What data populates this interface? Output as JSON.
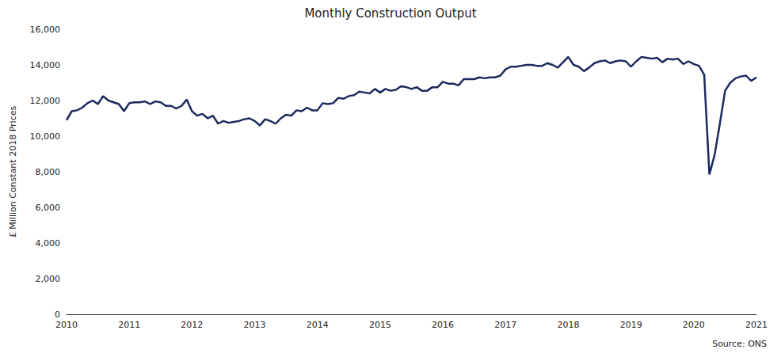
{
  "chart_data": {
    "type": "line",
    "title": "Monthly Construction Output",
    "y_label": "£ Million Constant 2018 Prices",
    "annotations": [
      "Source: ONS"
    ],
    "color": "#1b2a5e",
    "grid": false,
    "ylim": [
      0,
      16000
    ],
    "yticks": [
      0,
      {
        "value": 2000,
        "label": "2,000"
      },
      {
        "value": 4000,
        "label": "4,000"
      },
      {
        "value": 6000,
        "label": "6,000"
      },
      {
        "value": 8000,
        "label": "8,000"
      },
      {
        "value": 10000,
        "label": "10,000"
      },
      {
        "value": 12000,
        "label": "12,000"
      },
      {
        "value": 14000,
        "label": "14,000"
      },
      {
        "value": 16000,
        "label": "16,000"
      }
    ],
    "categories": [
      "2010",
      null,
      null,
      null,
      null,
      null,
      null,
      null,
      null,
      null,
      null,
      null,
      "2011",
      null,
      null,
      null,
      null,
      null,
      null,
      null,
      null,
      null,
      null,
      null,
      "2012",
      null,
      null,
      null,
      null,
      null,
      null,
      null,
      null,
      null,
      null,
      null,
      "2013",
      null,
      null,
      null,
      null,
      null,
      null,
      null,
      null,
      null,
      null,
      null,
      "2014",
      null,
      null,
      null,
      null,
      null,
      null,
      null,
      null,
      null,
      null,
      null,
      "2015",
      null,
      null,
      null,
      null,
      null,
      null,
      null,
      null,
      null,
      null,
      null,
      "2016",
      null,
      null,
      null,
      null,
      null,
      null,
      null,
      null,
      null,
      null,
      null,
      "2017",
      null,
      null,
      null,
      null,
      null,
      null,
      null,
      null,
      null,
      null,
      null,
      "2018",
      null,
      null,
      null,
      null,
      null,
      null,
      null,
      null,
      null,
      null,
      null,
      "2019",
      null,
      null,
      null,
      null,
      null,
      null,
      null,
      null,
      null,
      null,
      null,
      "2020",
      null,
      null,
      null,
      null,
      null,
      null,
      null,
      null,
      null,
      null,
      null,
      "2021"
    ],
    "values": [
      10900,
      11400,
      11450,
      11600,
      11850,
      12000,
      11800,
      12250,
      12000,
      11900,
      11800,
      11400,
      11850,
      11900,
      11900,
      11950,
      11800,
      11950,
      11900,
      11700,
      11700,
      11550,
      11700,
      12050,
      11400,
      11150,
      11250,
      11000,
      11150,
      10700,
      10850,
      10750,
      10800,
      10850,
      10950,
      11000,
      10850,
      10600,
      10950,
      10850,
      10700,
      11000,
      11200,
      11150,
      11450,
      11400,
      11600,
      11450,
      11450,
      11850,
      11800,
      11850,
      12150,
      12100,
      12250,
      12300,
      12500,
      12450,
      12400,
      12650,
      12450,
      12650,
      12550,
      12600,
      12800,
      12750,
      12650,
      12750,
      12550,
      12550,
      12750,
      12750,
      13050,
      12950,
      12950,
      12850,
      13200,
      13200,
      13200,
      13300,
      13250,
      13300,
      13300,
      13400,
      13750,
      13900,
      13900,
      13950,
      14000,
      14000,
      13950,
      13950,
      14100,
      14000,
      13850,
      14150,
      14450,
      14000,
      13900,
      13650,
      13850,
      14100,
      14200,
      14250,
      14100,
      14200,
      14250,
      14200,
      13900,
      14200,
      14450,
      14400,
      14350,
      14400,
      14150,
      14350,
      14300,
      14350,
      14050,
      14200,
      14050,
      13950,
      13450,
      7850,
      8950,
      10700,
      12550,
      13000,
      13250,
      13350,
      13400,
      13100,
      13300
    ]
  }
}
